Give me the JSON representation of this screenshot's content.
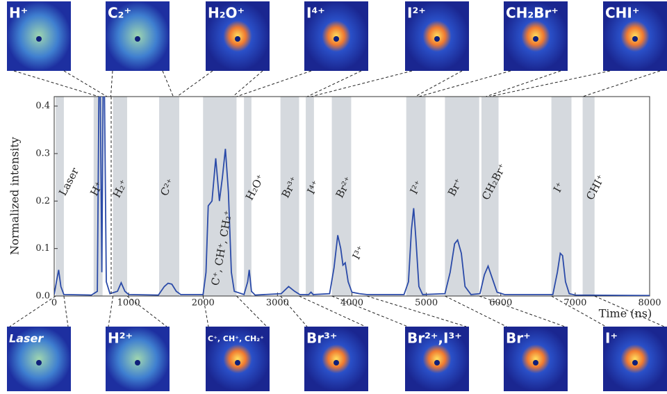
{
  "chart_data": {
    "type": "line",
    "xlabel": "Time (ns)",
    "ylabel": "Normalized intensity",
    "xlim": [
      0,
      8000
    ],
    "ylim": [
      0,
      0.42
    ],
    "xticks": [
      0,
      1000,
      2000,
      3000,
      4000,
      5000,
      6000,
      7000,
      8000
    ],
    "yticks": [
      {
        "value": 0,
        "label": "0.0"
      },
      0.1,
      0.2,
      0.3,
      0.4
    ],
    "color": "#2a4aa8",
    "band_color": "#d5d9de",
    "bands": [
      [
        20,
        130
      ],
      [
        530,
        650
      ],
      [
        790,
        980
      ],
      [
        1410,
        1680
      ],
      [
        2000,
        2450
      ],
      [
        2550,
        2650
      ],
      [
        3040,
        3290
      ],
      [
        3380,
        3490
      ],
      [
        3730,
        3990
      ],
      [
        4730,
        4990
      ],
      [
        5250,
        5710
      ],
      [
        5740,
        5970
      ],
      [
        6680,
        6950
      ],
      [
        7100,
        7260
      ]
    ],
    "x": [
      0,
      30,
      60,
      90,
      130,
      500,
      580,
      610,
      640,
      665,
      700,
      750,
      850,
      900,
      950,
      1000,
      1400,
      1480,
      1530,
      1580,
      1640,
      1700,
      2000,
      2040,
      2070,
      2120,
      2170,
      2220,
      2260,
      2300,
      2340,
      2380,
      2420,
      2550,
      2600,
      2620,
      2650,
      2700,
      3050,
      3150,
      3230,
      3300,
      3420,
      3450,
      3480,
      3700,
      3760,
      3810,
      3850,
      3880,
      3910,
      3950,
      4000,
      4100,
      4200,
      4700,
      4760,
      4800,
      4830,
      4860,
      4900,
      4950,
      5250,
      5320,
      5380,
      5420,
      5470,
      5520,
      5600,
      5720,
      5780,
      5830,
      5880,
      5950,
      6050,
      6700,
      6760,
      6800,
      6830,
      6870,
      6920,
      7000,
      8000
    ],
    "values": [
      0.003,
      0.03,
      0.055,
      0.02,
      0.003,
      0.002,
      0.01,
      0.6,
      0.05,
      0.6,
      0.03,
      0.005,
      0.01,
      0.028,
      0.01,
      0.003,
      0.002,
      0.02,
      0.027,
      0.025,
      0.01,
      0.003,
      0.003,
      0.05,
      0.19,
      0.2,
      0.29,
      0.2,
      0.25,
      0.31,
      0.22,
      0.05,
      0.01,
      0.003,
      0.03,
      0.055,
      0.01,
      0.002,
      0.005,
      0.02,
      0.01,
      0.003,
      0.003,
      0.008,
      0.003,
      0.005,
      0.06,
      0.128,
      0.1,
      0.065,
      0.07,
      0.03,
      0.008,
      0.005,
      0.003,
      0.003,
      0.03,
      0.14,
      0.185,
      0.12,
      0.02,
      0.003,
      0.005,
      0.05,
      0.11,
      0.118,
      0.09,
      0.02,
      0.003,
      0.005,
      0.045,
      0.063,
      0.04,
      0.008,
      0.003,
      0.003,
      0.05,
      0.09,
      0.085,
      0.03,
      0.005,
      0.002,
      0.001
    ],
    "peak_labels": [
      "Laser",
      "H⁺",
      "H₂⁺",
      "C²⁺",
      "C⁺, CH⁺, CH₂⁺",
      "H₂O⁺",
      "Br³⁺",
      "I⁴⁺",
      "Br²⁺",
      "I³⁺",
      "I²⁺",
      "Br⁺",
      "CH₂Br⁺",
      "I⁺",
      "CHI⁺"
    ],
    "top_images": [
      "H⁺",
      "C₂⁺",
      "H₂O⁺",
      "I⁴⁺",
      "I²⁺",
      "CH₂Br⁺",
      "CHI⁺"
    ],
    "bottom_images": [
      "Laser",
      "H²⁺",
      "C⁺, CH⁺, CH₂⁺",
      "Br³⁺",
      "Br²⁺,I³⁺",
      "Br⁺",
      "I⁺"
    ]
  }
}
